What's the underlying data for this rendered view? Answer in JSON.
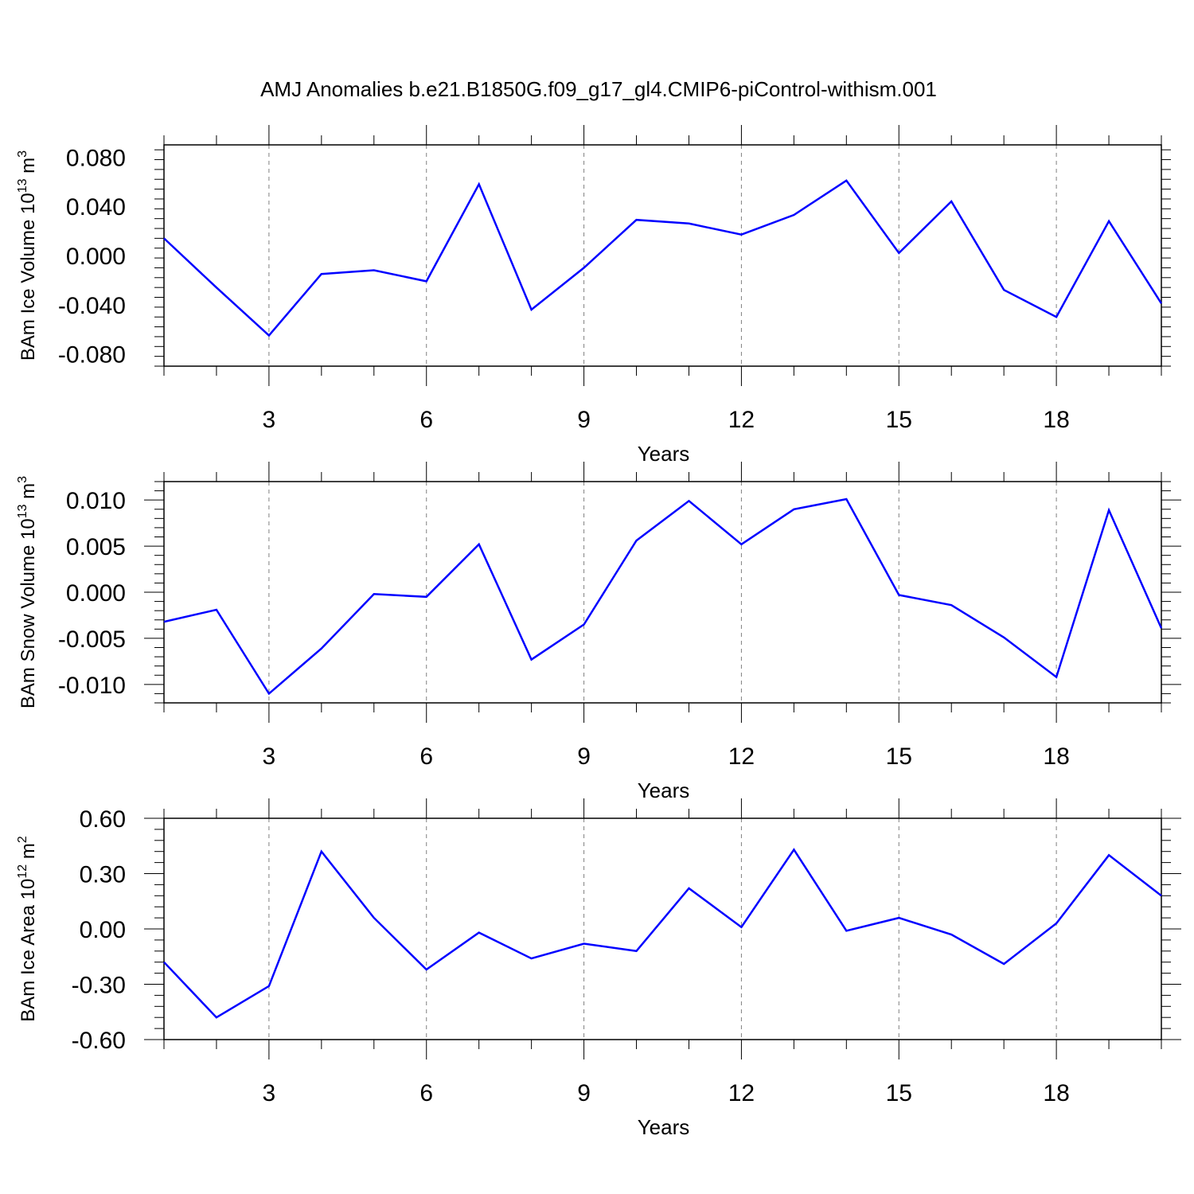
{
  "title": "AMJ Anomalies b.e21.B1850G.f09_g17_gl4.CMIP6-piControl-withism.001",
  "line_color": "#0000ff",
  "grid_color": "#808080",
  "chart_data": [
    {
      "type": "line",
      "xlabel": "Years",
      "ylabel": {
        "main": "BAm Ice Volume 10",
        "sup1": "13",
        "unit": " m",
        "sup2": "3"
      },
      "xlim": [
        1,
        20
      ],
      "ylim": [
        -0.09,
        0.09
      ],
      "xticks": [
        3,
        6,
        9,
        12,
        15,
        18
      ],
      "xtick_labels": [
        "3",
        "6",
        "9",
        "12",
        "15",
        "18"
      ],
      "yticks": [
        -0.08,
        -0.04,
        0.0,
        0.04,
        0.08
      ],
      "ytick_labels": [
        "-0.080",
        "-0.040",
        "0.000",
        "0.040",
        "0.080"
      ],
      "grid": "vertical dashed",
      "x": [
        1,
        2,
        3,
        4,
        5,
        6,
        7,
        8,
        9,
        10,
        11,
        12,
        13,
        14,
        15,
        16,
        17,
        18,
        19,
        20
      ],
      "values": [
        0.014,
        -0.026,
        -0.065,
        -0.015,
        -0.012,
        -0.021,
        0.058,
        -0.044,
        -0.01,
        0.029,
        0.026,
        0.017,
        0.033,
        0.061,
        0.002,
        0.044,
        -0.028,
        -0.05,
        0.028,
        -0.039
      ]
    },
    {
      "type": "line",
      "xlabel": "Years",
      "ylabel": {
        "main": "BAm Snow Volume 10",
        "sup1": "13",
        "unit": " m",
        "sup2": "3"
      },
      "xlim": [
        1,
        20
      ],
      "ylim": [
        -0.012,
        0.012
      ],
      "xticks": [
        3,
        6,
        9,
        12,
        15,
        18
      ],
      "xtick_labels": [
        "3",
        "6",
        "9",
        "12",
        "15",
        "18"
      ],
      "yticks": [
        -0.01,
        -0.005,
        0.0,
        0.005,
        0.01
      ],
      "ytick_labels": [
        "-0.010",
        "-0.005",
        "0.000",
        "0.005",
        "0.010"
      ],
      "grid": "vertical dashed",
      "x": [
        1,
        2,
        3,
        4,
        5,
        6,
        7,
        8,
        9,
        10,
        11,
        12,
        13,
        14,
        15,
        16,
        17,
        18,
        19,
        20
      ],
      "values": [
        -0.0032,
        -0.0019,
        -0.011,
        -0.0061,
        -0.0002,
        -0.0005,
        0.0052,
        -0.0073,
        -0.0035,
        0.0056,
        0.0099,
        0.0052,
        0.009,
        0.0101,
        -0.0003,
        -0.0014,
        -0.0049,
        -0.0092,
        0.0089,
        -0.0039
      ]
    },
    {
      "type": "line",
      "xlabel": "Years",
      "ylabel": {
        "main": "BAm Ice Area 10",
        "sup1": "12",
        "unit": " m",
        "sup2": "2"
      },
      "xlim": [
        1,
        20
      ],
      "ylim": [
        -0.6,
        0.6
      ],
      "xticks": [
        3,
        6,
        9,
        12,
        15,
        18
      ],
      "xtick_labels": [
        "3",
        "6",
        "9",
        "12",
        "15",
        "18"
      ],
      "yticks": [
        -0.6,
        -0.3,
        0.0,
        0.3,
        0.6
      ],
      "ytick_labels": [
        "-0.60",
        "-0.30",
        "0.00",
        "0.30",
        "0.60"
      ],
      "grid": "vertical dashed",
      "x": [
        1,
        2,
        3,
        4,
        5,
        6,
        7,
        8,
        9,
        10,
        11,
        12,
        13,
        14,
        15,
        16,
        17,
        18,
        19,
        20
      ],
      "values": [
        -0.18,
        -0.48,
        -0.31,
        0.42,
        0.06,
        -0.22,
        -0.02,
        -0.16,
        -0.08,
        -0.12,
        0.22,
        0.01,
        0.43,
        -0.01,
        0.06,
        -0.03,
        -0.19,
        0.03,
        0.4,
        0.18
      ]
    }
  ]
}
